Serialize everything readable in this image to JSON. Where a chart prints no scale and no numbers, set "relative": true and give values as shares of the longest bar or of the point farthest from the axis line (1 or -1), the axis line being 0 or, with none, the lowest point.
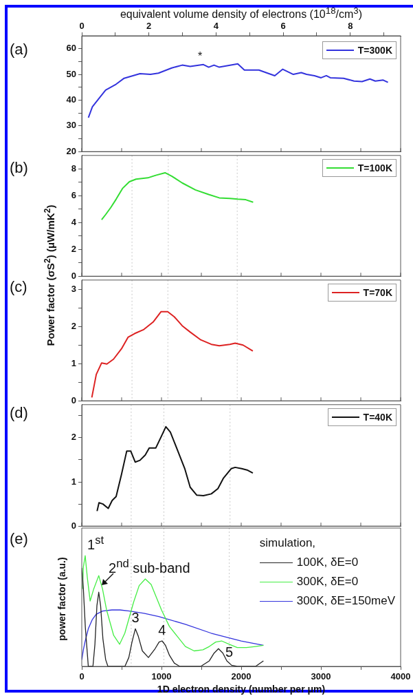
{
  "chart_data": [
    {
      "type": "line",
      "x2label": "equivalent volume density of electrons (10$^{18}$/cm$^{3}$)",
      "xlim": [
        0,
        4000
      ],
      "xticks": [
        0,
        {
          "value": 500,
          "label": null
        },
        1000,
        {
          "value": 1500,
          "label": null
        },
        2000,
        {
          "value": 2500,
          "label": null
        },
        3000,
        {
          "value": 3500,
          "label": null
        },
        4000
      ],
      "x2lim": [
        0,
        9.5
      ],
      "x2ticks": [
        0,
        {
          "value": 1,
          "label": null
        },
        2,
        {
          "value": 3,
          "label": null
        },
        4,
        {
          "value": 5,
          "label": null
        },
        6,
        {
          "value": 7,
          "label": null
        },
        8,
        {
          "value": 9,
          "label": null
        }
      ],
      "ylim": [
        20,
        65
      ],
      "yticks": [
        20,
        {
          "value": 25,
          "label": null
        },
        30,
        {
          "value": 35,
          "label": null
        },
        40,
        {
          "value": 45,
          "label": null
        },
        50,
        {
          "value": 55,
          "label": null
        },
        60
      ],
      "tick_labels": "y",
      "legend": "top right",
      "marker": "none",
      "annotations": [
        "(a)",
        {
          "text": "*",
          "x": 1483,
          "y": 53.7
        }
      ],
      "series": [
        {
          "name": "T=300K",
          "color": "#3333dd",
          "x": [
            83,
            133,
            232,
            299,
            431,
            531,
            730,
            862,
            962,
            1128,
            1260,
            1360,
            1526,
            1592,
            1659,
            1725,
            1957,
            2040,
            2222,
            2421,
            2521,
            2654,
            2753,
            2820,
            2919,
            3002,
            3068,
            3118,
            3284,
            3416,
            3516,
            3615,
            3682,
            3781,
            3841
          ],
          "values": [
            33.2,
            37.4,
            41.3,
            43.9,
            46.2,
            48.5,
            50.3,
            50,
            50.5,
            52.5,
            53.6,
            53.1,
            53.8,
            52.8,
            53.6,
            52.8,
            54.1,
            51.7,
            51.7,
            49.5,
            52,
            50,
            50.7,
            50,
            49.5,
            48.7,
            49.5,
            48.7,
            48.5,
            47.4,
            47.2,
            48.2,
            47.4,
            47.8,
            46.9
          ]
        }
      ]
    },
    {
      "type": "line",
      "xlim": [
        0,
        4000
      ],
      "xticks": [
        0,
        {
          "value": 500,
          "label": null
        },
        1000,
        {
          "value": 1500,
          "label": null
        },
        2000,
        {
          "value": 2500,
          "label": null
        },
        3000,
        {
          "value": 3500,
          "label": null
        },
        4000
      ],
      "ylim": [
        0,
        9
      ],
      "yticks": [
        0,
        {
          "value": 1,
          "label": null
        },
        2,
        {
          "value": 3,
          "label": null
        },
        4,
        {
          "value": 5,
          "label": null
        },
        6,
        {
          "value": 7,
          "label": null
        },
        8
      ],
      "tick_labels": "y",
      "legend": "top right",
      "marker": "none",
      "annotations": [
        "(b)"
      ],
      "ref_lines": [
        {
          "axis": "x",
          "value": 630,
          "color": "#c8c8c8",
          "line_style": "dotted"
        },
        {
          "axis": "x",
          "value": 1085,
          "color": "#c8c8c8",
          "line_style": "dotted"
        },
        {
          "axis": "x",
          "value": 1950,
          "color": "#c8c8c8",
          "line_style": "dotted"
        }
      ],
      "series": [
        {
          "name": "T=100K",
          "color": "#33dd33",
          "x": [
            249,
            299,
            365,
            431,
            514,
            597,
            680,
            829,
            929,
            1045,
            1128,
            1260,
            1426,
            1592,
            1725,
            1858,
            1957,
            2057,
            2150
          ],
          "values": [
            4.21,
            4.59,
            5.13,
            5.74,
            6.56,
            7.04,
            7.23,
            7.33,
            7.52,
            7.71,
            7.46,
            6.95,
            6.43,
            6.09,
            5.84,
            5.8,
            5.74,
            5.7,
            5.51
          ]
        }
      ]
    },
    {
      "type": "line",
      "ylabel": "Power factor (σS$^{2}$) (μW/mK$^{2}$)",
      "xlim": [
        0,
        4000
      ],
      "xticks": [
        0,
        {
          "value": 500,
          "label": null
        },
        1000,
        {
          "value": 1500,
          "label": null
        },
        2000,
        {
          "value": 2500,
          "label": null
        },
        3000,
        {
          "value": 3500,
          "label": null
        },
        4000
      ],
      "ylim": [
        0,
        3.25
      ],
      "yticks": [
        0,
        {
          "value": 0.5,
          "label": null
        },
        1,
        {
          "value": 1.5,
          "label": null
        },
        2,
        {
          "value": 2.5,
          "label": null
        },
        3
      ],
      "tick_labels": "y",
      "legend": "top right",
      "marker": "none",
      "annotations": [
        "(c)"
      ],
      "ref_lines": [
        {
          "axis": "x",
          "value": 630,
          "color": "#c8c8c8",
          "line_style": "dotted"
        },
        {
          "axis": "x",
          "value": 1080,
          "color": "#c8c8c8",
          "line_style": "dotted"
        },
        {
          "axis": "x",
          "value": 1950,
          "color": "#c8c8c8",
          "line_style": "dotted"
        }
      ],
      "series": [
        {
          "name": "T=70K",
          "color": "#dd2222",
          "x": [
            126,
            182,
            249,
            315,
            398,
            498,
            580,
            663,
            779,
            895,
            995,
            1078,
            1161,
            1260,
            1360,
            1493,
            1625,
            1725,
            1858,
            1924,
            2023,
            2146
          ],
          "values": [
            0.09,
            0.71,
            1.02,
            0.99,
            1.12,
            1.4,
            1.71,
            1.81,
            1.92,
            2.12,
            2.4,
            2.4,
            2.26,
            2.02,
            1.85,
            1.64,
            1.52,
            1.48,
            1.52,
            1.55,
            1.5,
            1.34
          ]
        }
      ]
    },
    {
      "type": "line",
      "xlim": [
        0,
        4000
      ],
      "xticks": [
        0,
        {
          "value": 500,
          "label": null
        },
        1000,
        {
          "value": 1500,
          "label": null
        },
        2000,
        {
          "value": 2500,
          "label": null
        },
        3000,
        {
          "value": 3500,
          "label": null
        },
        4000
      ],
      "ylim": [
        0,
        2.75
      ],
      "yticks": [
        0,
        {
          "value": 0.5,
          "label": null
        },
        1,
        {
          "value": 1.5,
          "label": null
        },
        2,
        {
          "value": 2.5,
          "label": null
        }
      ],
      "tick_labels": "y",
      "legend": "top right",
      "marker": "none",
      "annotations": [
        "(d)"
      ],
      "ref_lines": [
        {
          "axis": "x",
          "value": 620,
          "color": "#c8c8c8",
          "line_style": "dotted"
        },
        {
          "axis": "x",
          "value": 1030,
          "color": "#c8c8c8",
          "line_style": "dotted"
        },
        {
          "axis": "x",
          "value": 1860,
          "color": "#c8c8c8",
          "line_style": "dotted"
        }
      ],
      "series": [
        {
          "name": "T=40K",
          "color": "#111111",
          "x": [
            192,
            216,
            265,
            332,
            381,
            431,
            498,
            564,
            614,
            670,
            730,
            796,
            846,
            929,
            995,
            1055,
            1111,
            1194,
            1294,
            1360,
            1443,
            1526,
            1625,
            1708,
            1775,
            1874,
            1924,
            2007,
            2073,
            2146
          ],
          "values": [
            0.34,
            0.53,
            0.5,
            0.4,
            0.58,
            0.67,
            1.17,
            1.7,
            1.7,
            1.45,
            1.49,
            1.61,
            1.77,
            1.77,
            2.02,
            2.25,
            2.13,
            1.75,
            1.29,
            0.88,
            0.7,
            0.69,
            0.73,
            0.85,
            1.08,
            1.3,
            1.33,
            1.3,
            1.27,
            1.2
          ]
        }
      ]
    },
    {
      "type": "line",
      "xlabel": "1D electron density (number per μm)",
      "ylabel": "power factor (a.u.)",
      "relative": true,
      "xlim": [
        0,
        4000
      ],
      "xticks": [
        0,
        {
          "value": 500,
          "label": null
        },
        1000,
        {
          "value": 1500,
          "label": null
        },
        2000,
        {
          "value": 2500,
          "label": null
        },
        3000,
        {
          "value": 3500,
          "label": null
        },
        4000
      ],
      "legend": "top right",
      "legend_title": "simulation,",
      "marker": "none",
      "annotations": [
        "(e)",
        "1$^{st}$",
        "2$^{nd}$ sub-band",
        {
          "text": "3",
          "x": 672,
          "y": 0.34
        },
        {
          "text": "4",
          "x": 1007,
          "y": 0.23
        },
        {
          "text": "5",
          "x": 1850,
          "y": 0.03
        }
      ],
      "ref_lines": [
        {
          "axis": "x",
          "value": 620,
          "color": "#c8c8c8",
          "line_style": "dotted"
        },
        {
          "axis": "x",
          "value": 1030,
          "color": "#c8c8c8",
          "line_style": "dotted"
        },
        {
          "axis": "x",
          "value": 1850,
          "color": "#c8c8c8",
          "line_style": "dotted"
        }
      ],
      "series": [
        {
          "name": "100K, δE=0",
          "color": "#222222",
          "x": [
            0,
            20,
            45,
            82,
            140,
            165,
            190,
            213,
            236,
            265,
            300,
            328,
            541,
            590,
            630,
            672,
            710,
            760,
            836,
            920,
            970,
            1007,
            1050,
            1100,
            1160,
            1230,
            1492,
            1600,
            1660,
            1715,
            1770,
            1820,
            1880,
            1951,
            2180,
            2279
          ],
          "values": [
            0.89,
            0.7,
            0.35,
            0,
            0,
            0.2,
            0.55,
            0.67,
            0.55,
            0.25,
            0.06,
            0,
            0,
            0.08,
            0.22,
            0.34,
            0.27,
            0.14,
            0.08,
            0.16,
            0.22,
            0.23,
            0.19,
            0.1,
            0.03,
            0,
            0,
            0.05,
            0.12,
            0.16,
            0.12,
            0.05,
            0.01,
            0,
            0,
            0.05
          ]
        },
        {
          "name": "300K, δE=0",
          "color": "#44ee44",
          "x": [
            10,
            20,
            43,
            70,
            105,
            150,
            213,
            260,
            311,
            400,
            475,
            540,
            650,
            720,
            797,
            870,
            1000,
            1100,
            1200,
            1300,
            1410,
            1520,
            1600,
            1680,
            1754,
            1850,
            1950,
            2066,
            2180,
            2279
          ],
          "values": [
            0.7,
            0.9,
            1,
            0.8,
            0.59,
            0.7,
            0.82,
            0.7,
            0.51,
            0.28,
            0.2,
            0.3,
            0.58,
            0.73,
            0.79,
            0.74,
            0.51,
            0.36,
            0.27,
            0.18,
            0.14,
            0.15,
            0.18,
            0.22,
            0.23,
            0.2,
            0.17,
            0.17,
            0.18,
            0.19
          ]
        },
        {
          "name": "300K, δE=150meV",
          "color": "#3333dd",
          "x": [
            0,
            20,
            40,
            82,
            130,
            180,
            260,
            377,
            480,
            600,
            780,
            967,
            1300,
            1623,
            2000,
            2279
          ],
          "values": [
            0.06,
            0.15,
            0.22,
            0.34,
            0.42,
            0.47,
            0.5,
            0.51,
            0.51,
            0.5,
            0.48,
            0.45,
            0.38,
            0.3,
            0.23,
            0.19
          ]
        }
      ]
    }
  ]
}
